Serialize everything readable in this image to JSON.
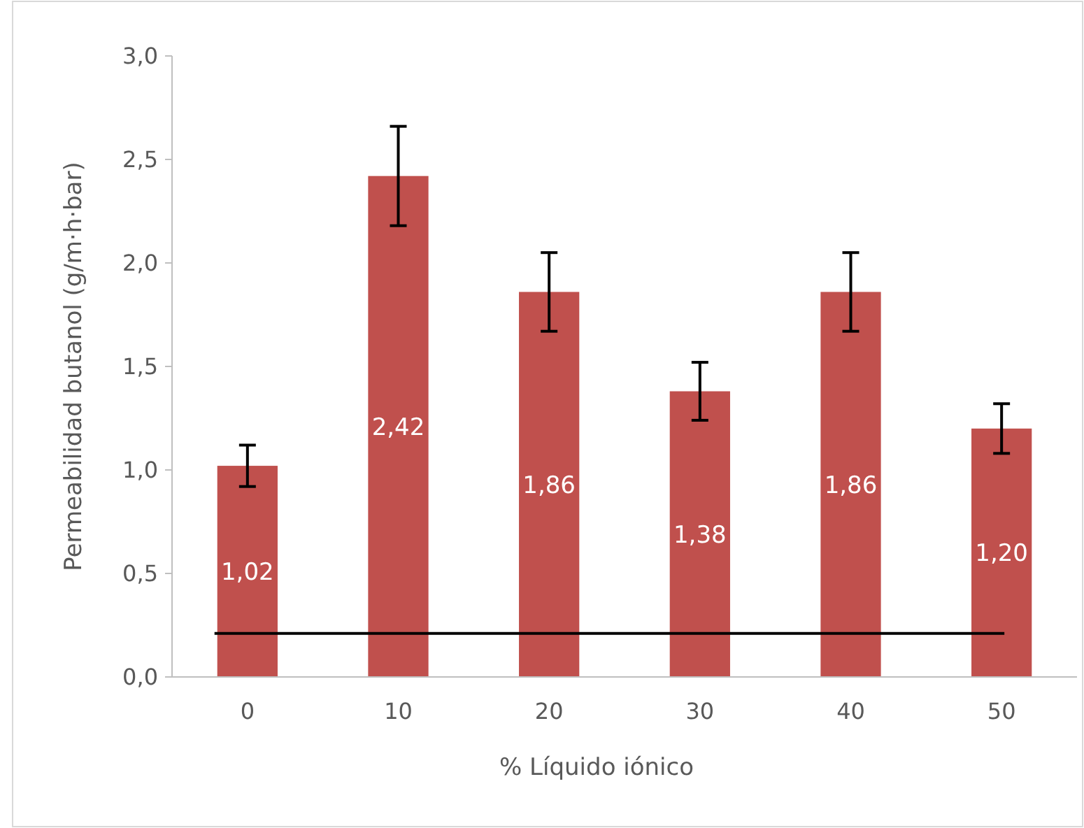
{
  "chart_data": {
    "type": "bar",
    "xlabel": "% Líquido iónico",
    "ylabel": "Permeabilidad butanol (g/m·h·bar)",
    "categories": [
      "0",
      "10",
      "20",
      "30",
      "40",
      "50"
    ],
    "values": [
      1.02,
      2.42,
      1.86,
      1.38,
      1.86,
      1.2
    ],
    "value_labels": [
      "1,02",
      "2,42",
      "1,86",
      "1,38",
      "1,86",
      "1,20"
    ],
    "errors": [
      0.1,
      0.24,
      0.19,
      0.14,
      0.19,
      0.12
    ],
    "color": "#c0504d",
    "ylim": [
      0,
      3
    ],
    "yticks": [
      {
        "value": 0,
        "label": "0,0"
      },
      {
        "value": 0.5,
        "label": "0,5"
      },
      {
        "value": 1,
        "label": "1,0"
      },
      {
        "value": 1.5,
        "label": "1,5"
      },
      {
        "value": 2,
        "label": "2,0"
      },
      {
        "value": 2.5,
        "label": "2,5"
      },
      {
        "value": 3,
        "label": "3,0"
      }
    ],
    "ref_lines": [
      {
        "axis": "y",
        "value": 0.21,
        "color": "#000000"
      }
    ],
    "grid": false
  }
}
